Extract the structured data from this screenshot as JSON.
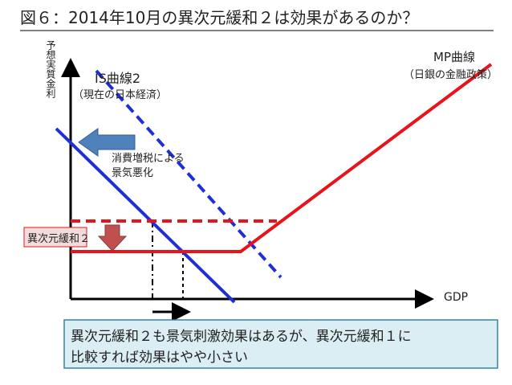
{
  "header": {
    "title": "図６：2014年10月の異次元緩和２は効果があるのか？"
  },
  "axes": {
    "y_label": "予想実質金利",
    "x_label": "GDP"
  },
  "curves": {
    "is_label": "IS曲線2",
    "is_note": "（現在の日本経済）",
    "mp_label": "MP曲線",
    "mp_note": "（日銀の金融政策）"
  },
  "annotations": {
    "shock_line1": "消費増税による",
    "shock_line2": "景気悪化",
    "policy": "異次元緩和２"
  },
  "conclusion": {
    "line1": "異次元緩和２も景気刺激効果はあるが、異次元緩和１に",
    "line2": "比較すれば効果はやや小さい"
  }
}
